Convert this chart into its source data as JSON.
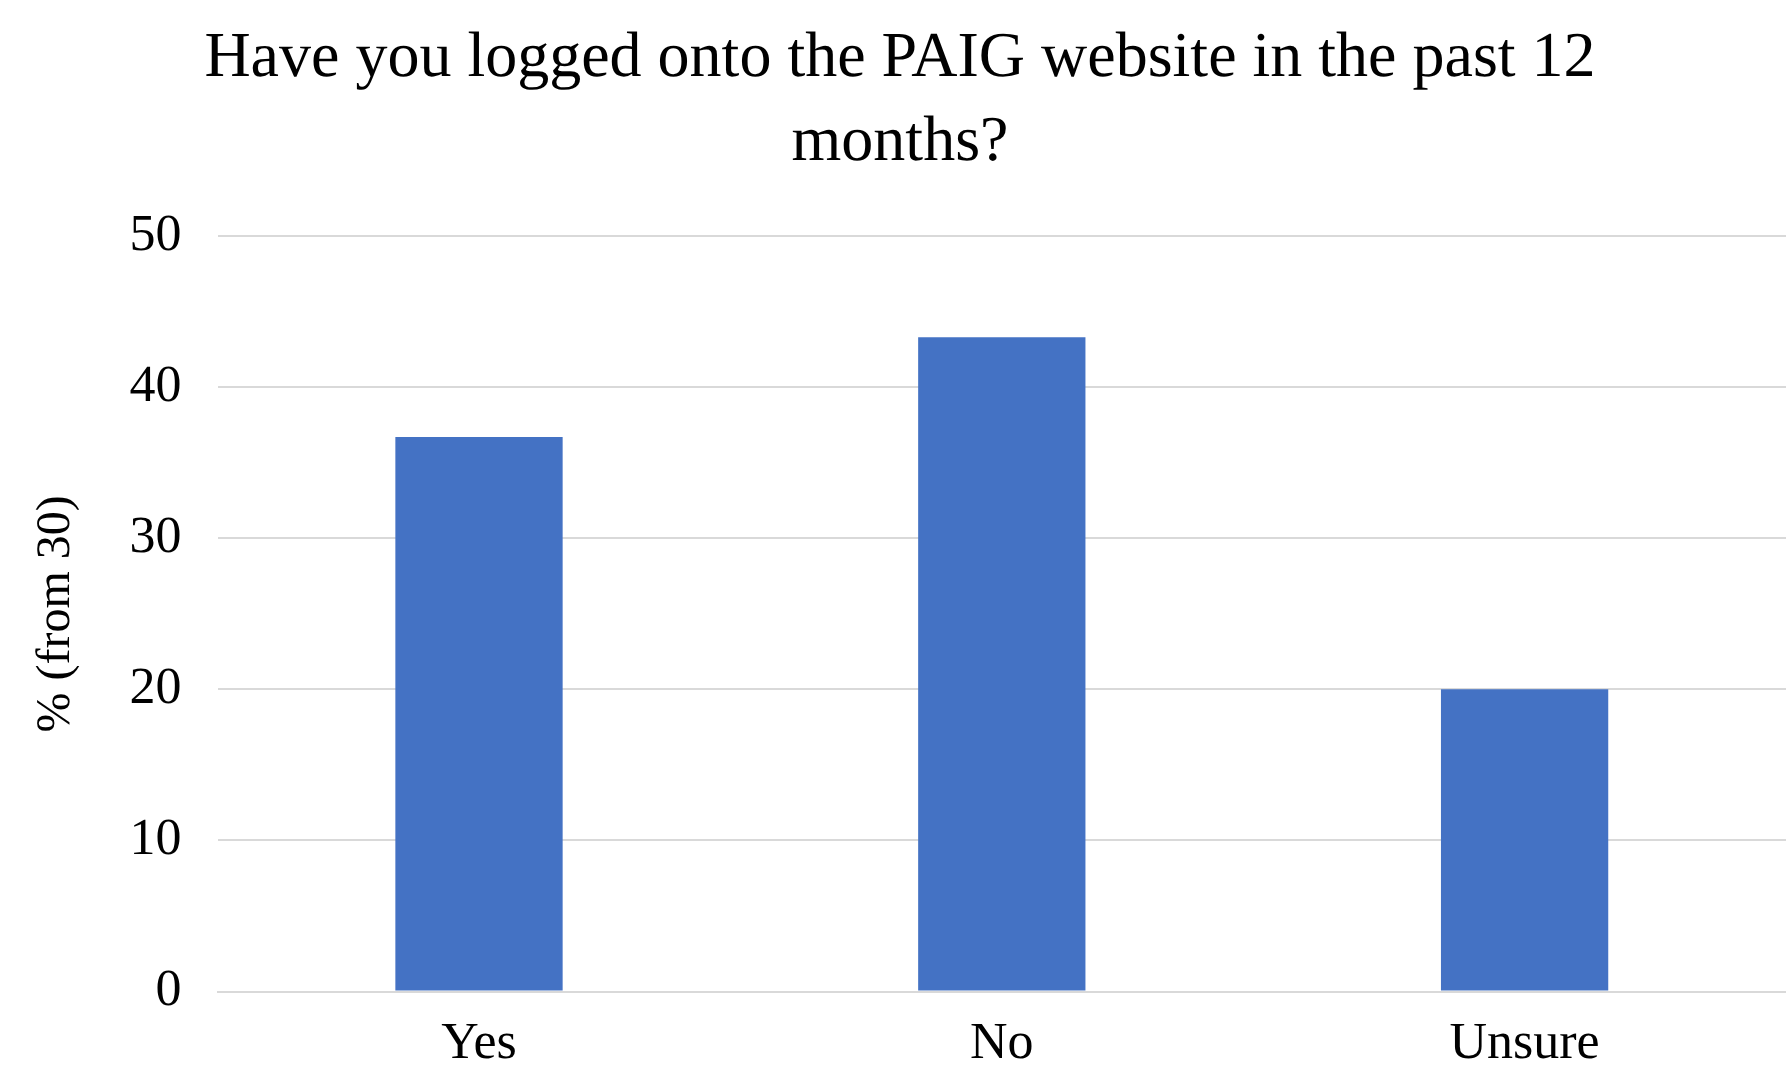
{
  "chart_data": {
    "type": "bar",
    "title": "Have you logged onto the PAIG website in the past 12 months?",
    "ylabel": "% (from 30)",
    "categories": [
      "Yes",
      "No",
      "Unsure"
    ],
    "values": [
      36.7,
      43.3,
      20
    ],
    "color": "#4472c4",
    "ylim": [
      0,
      50
    ],
    "yticks": [
      0,
      10,
      20,
      30,
      40,
      50
    ],
    "grid": "y"
  }
}
